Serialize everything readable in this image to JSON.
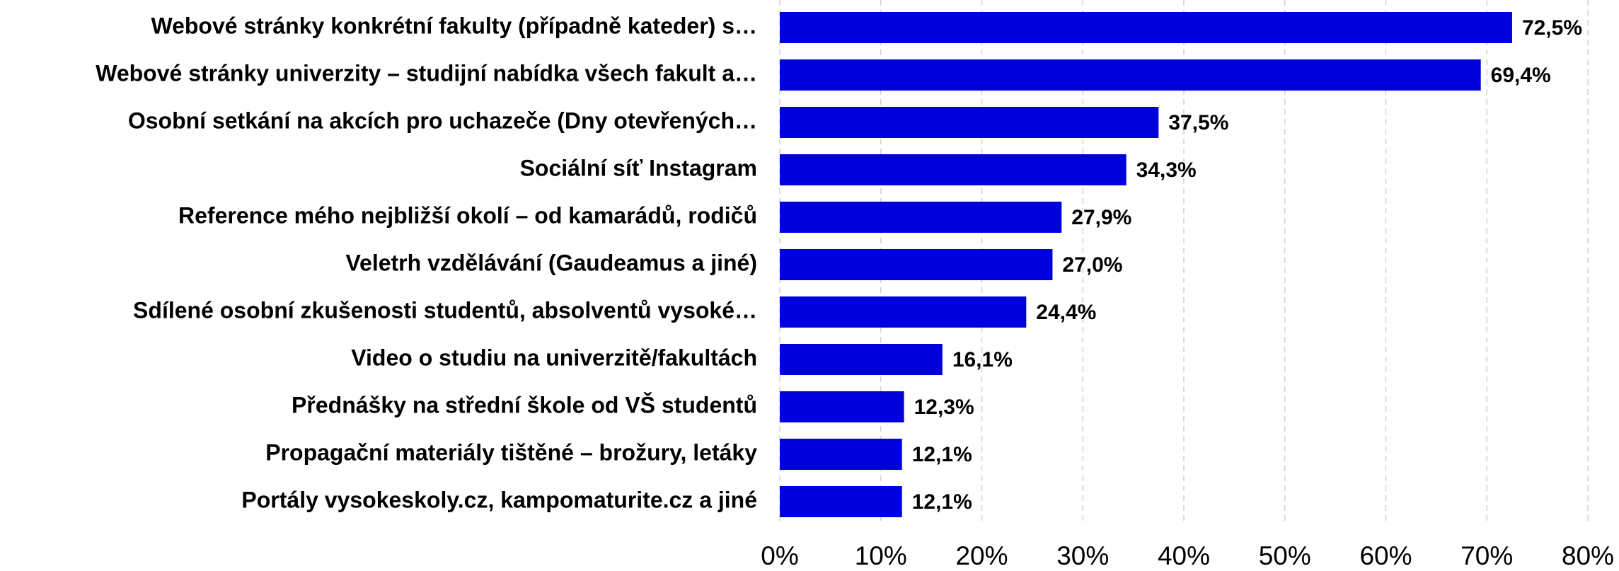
{
  "chart_data": {
    "type": "barh",
    "categories": [
      "Webové stránky konkrétní fakulty (případně kateder) s…",
      "Webové stránky univerzity – studijní nabídka všech fakult a…",
      "Osobní setkání na akcích pro uchazeče (Dny otevřených…",
      "Sociální síť Instagram",
      "Reference mého nejbližší okolí – od kamarádů, rodičů",
      "Veletrh vzdělávání (Gaudeamus a jiné)",
      "Sdílené osobní zkušenosti studentů, absolventů vysoké…",
      "Video o studiu na univerzitě/fakultách",
      "Přednášky na střední škole od VŠ studentů",
      "Propagační materiály tištěné – brožury, letáky",
      "Portály vysokeskoly.cz, kampomaturite.cz a jiné"
    ],
    "values": [
      72.5,
      69.4,
      37.5,
      34.3,
      27.9,
      27.0,
      24.4,
      16.1,
      12.3,
      12.1,
      12.1
    ],
    "value_labels": [
      "72,5%",
      "69,4%",
      "37,5%",
      "34,3%",
      "27,9%",
      "27,0%",
      "24,4%",
      "16,1%",
      "12,3%",
      "12,1%",
      "12,1%"
    ],
    "color": "#0000dd",
    "xlim": [
      0,
      80
    ],
    "xticks": [
      {
        "value": 0,
        "label": "0%"
      },
      {
        "value": 10,
        "label": "10%"
      },
      {
        "value": 20,
        "label": "20%"
      },
      {
        "value": 30,
        "label": "30%"
      },
      {
        "value": 40,
        "label": "40%"
      },
      {
        "value": 50,
        "label": "50%"
      },
      {
        "value": 60,
        "label": "60%"
      },
      {
        "value": 70,
        "label": "70%"
      },
      {
        "value": 80,
        "label": "80%"
      }
    ],
    "grid": true
  }
}
